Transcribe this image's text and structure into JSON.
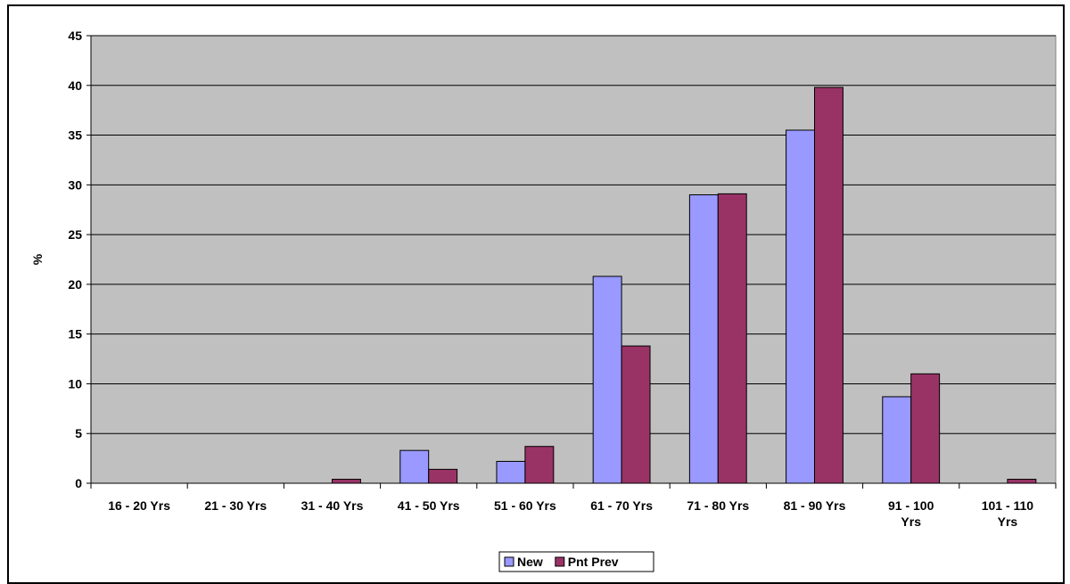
{
  "chart_data": {
    "type": "bar",
    "title": "",
    "xlabel": "",
    "ylabel": "%",
    "ylim": [
      0,
      45
    ],
    "yticks": [
      "0",
      "5",
      "10",
      "15",
      "20",
      "25",
      "30",
      "35",
      "40",
      "45"
    ],
    "categories": [
      [
        "16 - 20 Yrs"
      ],
      [
        "21 - 30 Yrs"
      ],
      [
        "31 - 40 Yrs"
      ],
      [
        "41 - 50 Yrs"
      ],
      [
        "51 - 60 Yrs"
      ],
      [
        "61 - 70 Yrs"
      ],
      [
        "71 - 80 Yrs"
      ],
      [
        "81 - 90 Yrs"
      ],
      [
        "91 - 100",
        "Yrs"
      ],
      [
        "101 - 110",
        "Yrs"
      ]
    ],
    "series": [
      {
        "name": "New",
        "color": "#9999ff",
        "values": [
          0,
          0,
          0,
          3.3,
          2.2,
          20.8,
          29.0,
          35.5,
          8.7,
          0
        ]
      },
      {
        "name": "Pnt Prev",
        "color": "#993366",
        "values": [
          0,
          0,
          0.4,
          1.4,
          3.7,
          13.8,
          29.1,
          39.8,
          11.0,
          0.4
        ]
      }
    ],
    "grid": true,
    "plot_background": "#c0c0c0",
    "legend_position": "bottom"
  }
}
